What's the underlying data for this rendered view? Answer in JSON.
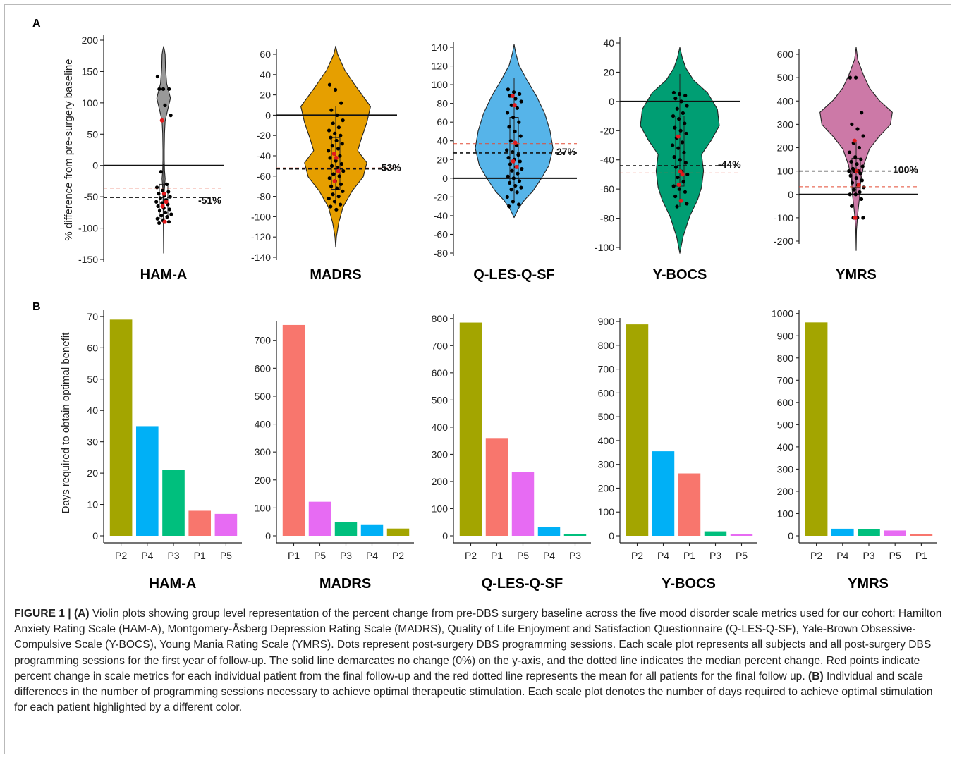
{
  "panel_a_letter": "A",
  "panel_b_letter": "B",
  "chart_data": [
    {
      "type": "violin",
      "scale": "HAM-A",
      "ylabel": "% difference from pre-surgery baseline",
      "ylim": [
        -150,
        200
      ],
      "ticks": [
        -150,
        -100,
        -50,
        0,
        50,
        100,
        150,
        200
      ],
      "median": -51,
      "median_label": "-51%",
      "mean_final": -36,
      "violin_color": "#999999",
      "violin_range": [
        -140,
        190
      ],
      "box": [
        -85,
        -30
      ],
      "points": [
        142,
        122,
        122,
        122,
        96,
        80,
        -10,
        -30,
        -35,
        -40,
        -42,
        -45,
        -48,
        -50,
        -52,
        -55,
        -58,
        -60,
        -62,
        -65,
        -68,
        -70,
        -72,
        -75,
        -78,
        -80,
        -82,
        -85,
        -88,
        -90,
        -92
      ],
      "red_points": [
        72,
        -45,
        -58,
        -65,
        -90
      ]
    },
    {
      "type": "violin",
      "scale": "MADRS",
      "ylim": [
        -140,
        60
      ],
      "ticks": [
        -140,
        -120,
        -100,
        -80,
        -60,
        -40,
        -20,
        0,
        20,
        40,
        60
      ],
      "median": -53,
      "median_label": "-53%",
      "mean_final": -52,
      "violin_color": "#E69F00",
      "violin_range": [
        -130,
        68
      ],
      "box": [
        -73,
        -22
      ],
      "points": [
        30,
        25,
        12,
        5,
        0,
        -5,
        -8,
        -12,
        -15,
        -18,
        -20,
        -22,
        -25,
        -28,
        -30,
        -33,
        -35,
        -38,
        -40,
        -42,
        -45,
        -48,
        -50,
        -52,
        -55,
        -58,
        -60,
        -62,
        -65,
        -68,
        -70,
        -72,
        -75,
        -78,
        -80,
        -82,
        -85,
        -88,
        -90,
        -93
      ],
      "red_points": [
        -38,
        -42,
        -55,
        -65
      ]
    },
    {
      "type": "violin",
      "scale": "Q-LES-Q-SF",
      "ylim": [
        -80,
        140
      ],
      "ticks": [
        -80,
        -60,
        -40,
        -20,
        0,
        20,
        40,
        60,
        80,
        100,
        120,
        140
      ],
      "median": 27,
      "median_label": "27%",
      "mean_final": 37,
      "violin_color": "#56B4E9",
      "violin_range": [
        -42,
        143
      ],
      "box": [
        -5,
        65
      ],
      "points": [
        95,
        92,
        90,
        88,
        85,
        82,
        78,
        75,
        70,
        65,
        60,
        55,
        50,
        45,
        40,
        35,
        30,
        28,
        25,
        22,
        20,
        18,
        15,
        12,
        10,
        8,
        5,
        2,
        0,
        -3,
        -5,
        -8,
        -10,
        -12,
        -15,
        -20,
        -25,
        -28,
        -30
      ],
      "red_points": [
        88,
        78,
        12,
        18,
        38
      ]
    },
    {
      "type": "violin",
      "scale": "Y-BOCS",
      "ylim": [
        -100,
        40
      ],
      "ticks": [
        -100,
        -80,
        -60,
        -40,
        -20,
        0,
        20,
        40
      ],
      "median": -44,
      "median_label": "-44%",
      "mean_final": -49,
      "violin_color": "#009E73",
      "violin_range": [
        -104,
        37
      ],
      "box": [
        -58,
        -10
      ],
      "points": [
        6,
        5,
        4,
        2,
        0,
        -3,
        -5,
        -8,
        -10,
        -12,
        -15,
        -18,
        -20,
        -22,
        -25,
        -28,
        -30,
        -32,
        -35,
        -38,
        -40,
        -42,
        -45,
        -48,
        -50,
        -52,
        -55,
        -58,
        -60,
        -62,
        -65,
        -68,
        -70,
        -72
      ],
      "red_points": [
        -24,
        -48,
        -50,
        -57,
        -68
      ]
    },
    {
      "type": "violin",
      "scale": "YMRS",
      "ylim": [
        -200,
        600
      ],
      "ticks": [
        -200,
        -100,
        0,
        100,
        200,
        300,
        400,
        500,
        600
      ],
      "median": 100,
      "median_label": "100%",
      "mean_final": 33,
      "violin_color": "#CC79A7",
      "violin_range": [
        -240,
        630
      ],
      "box": [
        30,
        155
      ],
      "points": [
        500,
        500,
        350,
        300,
        280,
        250,
        220,
        200,
        180,
        160,
        150,
        140,
        130,
        120,
        110,
        100,
        100,
        100,
        90,
        80,
        70,
        60,
        50,
        40,
        30,
        20,
        10,
        0,
        0,
        -20,
        -50,
        -100,
        -100,
        -100
      ],
      "red_points": [
        230,
        100,
        40,
        -100
      ]
    },
    {
      "type": "bar",
      "scale": "HAM-A",
      "ylabel": "Days required to obtain optimal benefit",
      "ylim": [
        0,
        72
      ],
      "ticks": [
        0,
        10,
        20,
        30,
        40,
        50,
        60,
        70
      ],
      "categories": [
        "P2",
        "P4",
        "P3",
        "P1",
        "P5"
      ],
      "values": [
        69,
        35,
        21,
        8,
        7
      ]
    },
    {
      "type": "bar",
      "scale": "MADRS",
      "ylim": [
        0,
        770
      ],
      "ticks": [
        0,
        100,
        200,
        300,
        400,
        500,
        600,
        700
      ],
      "categories": [
        "P1",
        "P5",
        "P3",
        "P4",
        "P2"
      ],
      "values": [
        755,
        122,
        48,
        41,
        26
      ]
    },
    {
      "type": "bar",
      "scale": "Q-LES-Q-SF",
      "ylim": [
        0,
        815
      ],
      "ticks": [
        0,
        100,
        200,
        300,
        400,
        500,
        600,
        700,
        800
      ],
      "categories": [
        "P2",
        "P1",
        "P5",
        "P4",
        "P3"
      ],
      "values": [
        785,
        360,
        235,
        33,
        7
      ]
    },
    {
      "type": "bar",
      "scale": "Y-BOCS",
      "ylim": [
        0,
        915
      ],
      "ticks": [
        0,
        100,
        200,
        300,
        400,
        500,
        600,
        700,
        800,
        900
      ],
      "categories": [
        "P2",
        "P4",
        "P1",
        "P3",
        "P5"
      ],
      "values": [
        888,
        355,
        262,
        19,
        6
      ]
    },
    {
      "type": "bar",
      "scale": "YMRS",
      "ylim": [
        0,
        1015
      ],
      "ticks": [
        0,
        100,
        200,
        300,
        400,
        500,
        600,
        700,
        800,
        900,
        1000
      ],
      "categories": [
        "P2",
        "P4",
        "P3",
        "P5",
        "P1"
      ],
      "values": [
        960,
        32,
        31,
        24,
        7
      ]
    }
  ],
  "patient_colors": {
    "P1": "#F8766D",
    "P2": "#A3A500",
    "P3": "#00BF7D",
    "P4": "#00B0F6",
    "P5": "#E76BF3"
  },
  "caption": {
    "figure_label": "FIGURE 1 | ",
    "a_tag": "(A)",
    "a_text": " Violin plots showing group level representation of the percent change from pre-DBS surgery baseline across the five mood disorder scale metrics used for our cohort: Hamilton Anxiety Rating Scale (HAM-A), Montgomery-Åsberg Depression Rating Scale (MADRS), Quality of Life Enjoyment and Satisfaction Questionnaire (Q-LES-Q-SF), Yale-Brown Obsessive-Compulsive Scale (Y-BOCS), Young Mania Rating Scale (YMRS). Dots represent post-surgery DBS programming sessions. Each scale plot represents all subjects and all post-surgery DBS programming sessions for the first year of follow-up. The solid line demarcates no change (0%) on the y-axis, and the dotted line indicates the median percent change. Red points indicate percent change in scale metrics for each individual patient from the final follow-up and the red dotted line represents the mean for all patients for the final follow up. ",
    "b_tag": "(B)",
    "b_text": " Individual and scale differences in the number of programming sessions necessary to achieve optimal therapeutic stimulation. Each scale plot denotes the number of days required to achieve optimal stimulation for each patient highlighted by a different color."
  }
}
